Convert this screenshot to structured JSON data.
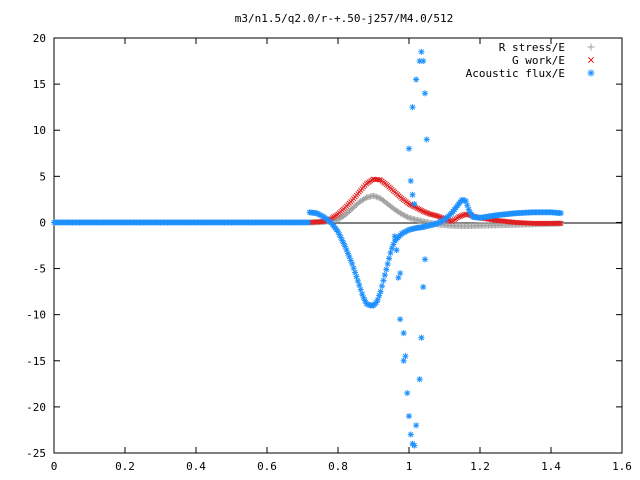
{
  "chart_data": {
    "type": "scatter",
    "title": "m3/n1.5/q2.0/r-+.50-j257/M4.0/512",
    "xlabel": "",
    "ylabel": "",
    "xlim": [
      0,
      1.6
    ],
    "ylim": [
      -25,
      20
    ],
    "xticks": [
      0,
      0.2,
      0.4,
      0.6,
      0.8,
      1,
      1.2,
      1.4,
      1.6
    ],
    "xtick_labels": [
      "0",
      "0.2",
      "0.4",
      "0.6",
      "0.8",
      "1",
      "1.2",
      "1.4",
      "1.6"
    ],
    "yticks": [
      -25,
      -20,
      -15,
      -10,
      -5,
      0,
      5,
      10,
      15,
      20
    ],
    "ytick_labels": [
      "-25",
      "-20",
      "-15",
      "-10",
      "-5",
      "0",
      "5",
      "10",
      "15",
      "20"
    ],
    "grid": false,
    "legend_position": "top-right",
    "series": [
      {
        "name": "R stress/E",
        "marker": "plus",
        "color": "#a0a0a0",
        "x": [
          0.72,
          0.76,
          0.8,
          0.82,
          0.84,
          0.86,
          0.88,
          0.9,
          0.92,
          0.94,
          0.96,
          0.98,
          1.0,
          1.02,
          1.04,
          1.08,
          1.12,
          1.16,
          1.2,
          1.25,
          1.3,
          1.35,
          1.4,
          1.43
        ],
        "y": [
          0,
          0.05,
          0.3,
          0.8,
          1.5,
          2.2,
          2.7,
          2.9,
          2.6,
          2.0,
          1.4,
          0.9,
          0.5,
          0.3,
          0.1,
          -0.2,
          -0.35,
          -0.4,
          -0.35,
          -0.3,
          -0.25,
          -0.2,
          -0.15,
          -0.1
        ]
      },
      {
        "name": "G work/E",
        "marker": "cross",
        "color": "#e02020",
        "x": [
          0.72,
          0.76,
          0.78,
          0.8,
          0.82,
          0.84,
          0.86,
          0.88,
          0.9,
          0.92,
          0.94,
          0.96,
          0.98,
          1.0,
          1.02,
          1.04,
          1.06,
          1.08,
          1.1,
          1.12,
          1.14,
          1.16,
          1.2,
          1.25,
          1.3,
          1.35,
          1.4,
          1.43
        ],
        "y": [
          0,
          0.1,
          0.4,
          0.9,
          1.6,
          2.4,
          3.3,
          4.2,
          4.7,
          4.6,
          4.0,
          3.3,
          2.6,
          2.0,
          1.6,
          1.2,
          0.9,
          0.7,
          0.4,
          0.1,
          0.6,
          0.9,
          0.5,
          0.2,
          0.0,
          -0.1,
          -0.1,
          -0.1
        ]
      },
      {
        "name": "Acoustic flux/E",
        "marker": "star",
        "color": "#1e90ff",
        "x": [
          0.72,
          0.74,
          0.76,
          0.78,
          0.8,
          0.82,
          0.84,
          0.86,
          0.87,
          0.88,
          0.89,
          0.9,
          0.91,
          0.92,
          0.93,
          0.94,
          0.95,
          0.96,
          0.98,
          1.0,
          1.02,
          1.04,
          1.06,
          1.08,
          1.1,
          1.12,
          1.14,
          1.15,
          1.16,
          1.17,
          1.18,
          1.2,
          1.25,
          1.3,
          1.35,
          1.4,
          1.43,
          0.96,
          0.975,
          0.985,
          0.995,
          1.0,
          1.005,
          1.01,
          1.015,
          1.02,
          1.03,
          1.035,
          1.04,
          1.045,
          1.01,
          1.02,
          1.03,
          1.035,
          1.04,
          1.045,
          1.05,
          1.0,
          1.005,
          1.01,
          1.015,
          0.99,
          0.985,
          0.975,
          0.97,
          0.965
        ],
        "y": [
          1.1,
          1.0,
          0.6,
          0.0,
          -1.0,
          -2.6,
          -4.5,
          -6.8,
          -8.0,
          -8.8,
          -9.0,
          -9.0,
          -8.6,
          -7.5,
          -6.0,
          -4.5,
          -3.0,
          -2.0,
          -1.2,
          -0.8,
          -0.6,
          -0.5,
          -0.3,
          -0.1,
          0.3,
          1.0,
          2.0,
          2.5,
          2.3,
          1.2,
          0.6,
          0.5,
          0.8,
          1.0,
          1.1,
          1.1,
          1.0,
          -1.5,
          -5.5,
          -12.0,
          -18.5,
          -21.0,
          -23.0,
          -24.0,
          -24.2,
          -22.0,
          -17.0,
          -12.5,
          -7.0,
          -4.0,
          12.5,
          15.5,
          17.5,
          18.5,
          17.5,
          14.0,
          9.0,
          8.0,
          4.5,
          3.0,
          2.0,
          -14.5,
          -15.0,
          -10.5,
          -6.0,
          -3.0
        ]
      }
    ]
  }
}
